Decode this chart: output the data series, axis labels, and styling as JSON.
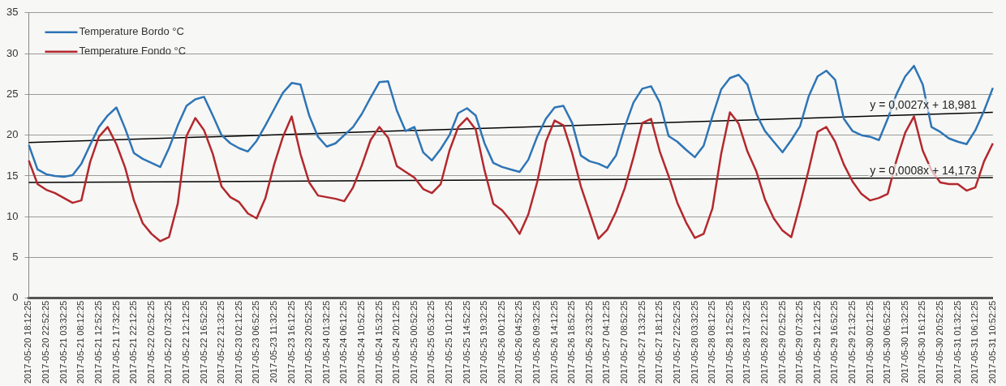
{
  "chart_data": {
    "type": "line",
    "categories": [
      "2017-05-20 18:12:25",
      null,
      "2017-05-20 22:52:25",
      null,
      "2017-05-21 03:32:25",
      null,
      "2017-05-21 08:12:25",
      null,
      "2017-05-21 12:52:25",
      null,
      "2017-05-21 17:32:25",
      null,
      "2017-05-21 22:12:25",
      null,
      "2017-05-22 02:52:25",
      null,
      "2017-05-22 07:32:25",
      null,
      "2017-05-22 12:12:25",
      null,
      "2017-05-22 16:52:25",
      null,
      "2017-05-22 21:32:25",
      null,
      "2017-05-23 02:12:25",
      null,
      "2017-05-23 06:52:25",
      null,
      "2017-05-23 11:32:25",
      null,
      "2017-05-23 16:12:25",
      null,
      "2017-05-23 20:52:25",
      null,
      "2017-05-24 01:32:25",
      null,
      "2017-05-24 06:12:25",
      null,
      "2017-05-24 10:52:25",
      null,
      "2017-05-24 15:32:25",
      null,
      "2017-05-24 20:12:25",
      null,
      "2017-05-25 00:52:25",
      null,
      "2017-05-25 05:32:25",
      null,
      "2017-05-25 10:12:25",
      null,
      "2017-05-25 14:52:25",
      null,
      "2017-05-25 19:32:25",
      null,
      "2017-05-26 00:12:25",
      null,
      "2017-05-26 04:52:25",
      null,
      "2017-05-26 09:32:25",
      null,
      "2017-05-26 14:12:25",
      null,
      "2017-05-26 18:52:25",
      null,
      "2017-05-26 23:32:25",
      null,
      "2017-05-27 04:12:25",
      null,
      "2017-05-27 08:52:25",
      null,
      "2017-05-27 13:32:25",
      null,
      "2017-05-27 18:12:25",
      null,
      "2017-05-27 22:52:25",
      null,
      "2017-05-28 03:32:25",
      null,
      "2017-05-28 08:12:25",
      null,
      "2017-05-28 12:52:25",
      null,
      "2017-05-28 17:32:25",
      null,
      "2017-05-28 22:12:25",
      null,
      "2017-05-29 02:52:25",
      null,
      "2017-05-29 07:32:25",
      null,
      "2017-05-29 12:12:25",
      null,
      "2017-05-29 16:52:25",
      null,
      "2017-05-29 21:32:25",
      null,
      "2017-05-30 02:12:25",
      null,
      "2017-05-30 06:52:25",
      null,
      "2017-05-30 11:32:25",
      null,
      "2017-05-30 16:12:25",
      null,
      "2017-05-30 20:52:25",
      null,
      "2017-05-31 01:32:25",
      null,
      "2017-05-31 06:12:25",
      null,
      "2017-05-31 10:52:25"
    ],
    "series": [
      {
        "name": "Temperature Bordo °C",
        "color": "#2e75b6",
        "values": [
          18.8,
          15.8,
          15.2,
          15.0,
          14.9,
          15.1,
          16.5,
          18.8,
          21.0,
          22.4,
          23.4,
          20.8,
          17.8,
          17.1,
          16.6,
          16.1,
          18.4,
          21.2,
          23.6,
          24.4,
          24.7,
          22.4,
          20.0,
          19.0,
          18.4,
          18.0,
          19.3,
          21.2,
          23.2,
          25.2,
          26.4,
          26.2,
          22.4,
          19.8,
          18.6,
          19.0,
          20.0,
          21.0,
          22.6,
          24.6,
          26.5,
          26.6,
          23.0,
          20.5,
          21.0,
          17.9,
          16.9,
          18.3,
          20.0,
          22.7,
          23.3,
          22.4,
          19.0,
          16.6,
          16.1,
          15.8,
          15.5,
          17.0,
          19.8,
          22.0,
          23.4,
          23.6,
          21.5,
          17.5,
          16.8,
          16.5,
          16.0,
          17.5,
          21.0,
          24.0,
          25.7,
          26.0,
          24.0,
          19.9,
          19.2,
          18.2,
          17.3,
          18.7,
          22.3,
          25.6,
          27.0,
          27.4,
          26.2,
          22.6,
          20.5,
          19.2,
          17.9,
          19.4,
          21.1,
          24.8,
          27.2,
          27.9,
          26.8,
          22.0,
          20.5,
          20.0,
          19.8,
          19.4,
          22.0,
          25.0,
          27.2,
          28.5,
          26.2,
          21.0,
          20.4,
          19.6,
          19.2,
          18.9,
          20.6,
          23.0,
          25.8
        ]
      },
      {
        "name": "Temperature Fondo °C",
        "color": "#b3282d",
        "values": [
          16.9,
          14.0,
          13.3,
          12.9,
          12.3,
          11.7,
          12.0,
          16.7,
          19.8,
          21.0,
          18.9,
          16.0,
          12.0,
          9.2,
          7.9,
          7.0,
          7.5,
          11.6,
          19.9,
          22.1,
          20.6,
          17.7,
          13.7,
          12.4,
          11.8,
          10.4,
          9.8,
          12.3,
          16.4,
          19.8,
          22.3,
          17.7,
          14.2,
          12.6,
          12.4,
          12.2,
          11.9,
          13.6,
          16.3,
          19.4,
          21.0,
          19.7,
          16.2,
          15.5,
          14.8,
          13.4,
          12.9,
          14.0,
          18.1,
          21.0,
          22.1,
          20.7,
          15.7,
          11.6,
          10.8,
          9.5,
          7.9,
          10.3,
          14.2,
          19.2,
          21.8,
          21.2,
          17.8,
          13.7,
          10.5,
          7.3,
          8.4,
          10.6,
          13.5,
          17.3,
          21.5,
          22.0,
          18.0,
          15.0,
          11.7,
          9.3,
          7.4,
          7.9,
          11.0,
          17.7,
          22.8,
          21.4,
          18.0,
          15.6,
          12.1,
          9.8,
          8.3,
          7.5,
          11.5,
          15.8,
          20.4,
          21.0,
          19.2,
          16.4,
          14.3,
          12.8,
          12.0,
          12.3,
          12.8,
          16.9,
          20.3,
          22.3,
          18.1,
          15.7,
          14.2,
          14.0,
          14.0,
          13.2,
          13.6,
          16.8,
          19.0
        ]
      },
      {
        "type": "line",
        "color": "#000000",
        "values": [
          19.1,
          null,
          null,
          null,
          null,
          null,
          null,
          null,
          null,
          null,
          null,
          null,
          null,
          null,
          null,
          null,
          null,
          null,
          null,
          null,
          null,
          null,
          null,
          null,
          null,
          null,
          null,
          null,
          null,
          null,
          null,
          null,
          null,
          null,
          null,
          null,
          null,
          null,
          null,
          null,
          null,
          null,
          null,
          null,
          null,
          null,
          null,
          null,
          null,
          null,
          null,
          null,
          null,
          null,
          null,
          null,
          null,
          null,
          null,
          null,
          null,
          null,
          null,
          null,
          null,
          null,
          null,
          null,
          null,
          null,
          null,
          null,
          null,
          null,
          null,
          null,
          null,
          null,
          null,
          null,
          null,
          null,
          null,
          null,
          null,
          null,
          null,
          null,
          null,
          null,
          null,
          null,
          null,
          null,
          null,
          null,
          null,
          null,
          null,
          null,
          null,
          null,
          null,
          null,
          null,
          null,
          null,
          null,
          null,
          null,
          22.8
        ]
      },
      {
        "type": "line",
        "color": "#000000",
        "values": [
          14.2,
          null,
          null,
          null,
          null,
          null,
          null,
          null,
          null,
          null,
          null,
          null,
          null,
          null,
          null,
          null,
          null,
          null,
          null,
          null,
          null,
          null,
          null,
          null,
          null,
          null,
          null,
          null,
          null,
          null,
          null,
          null,
          null,
          null,
          null,
          null,
          null,
          null,
          null,
          null,
          null,
          null,
          null,
          null,
          null,
          null,
          null,
          null,
          null,
          null,
          null,
          null,
          null,
          null,
          null,
          null,
          null,
          null,
          null,
          null,
          null,
          null,
          null,
          null,
          null,
          null,
          null,
          null,
          null,
          null,
          null,
          null,
          null,
          null,
          null,
          null,
          null,
          null,
          null,
          null,
          null,
          null,
          null,
          null,
          null,
          null,
          null,
          null,
          null,
          null,
          null,
          null,
          null,
          null,
          null,
          null,
          null,
          null,
          null,
          null,
          null,
          null,
          null,
          null,
          null,
          null,
          null,
          null,
          null,
          null,
          14.8
        ]
      }
    ],
    "ylim": [
      0,
      35
    ],
    "yticks": [
      0,
      5,
      10,
      15,
      20,
      25,
      30,
      35
    ],
    "grid": "y",
    "legend": "top left",
    "marker": "none",
    "annotations": [
      {
        "text": "y = 0,0027x + 18,981",
        "y": 22.6
      },
      {
        "text": "y = 0,0008x + 14,173",
        "y": 14.6
      }
    ]
  }
}
